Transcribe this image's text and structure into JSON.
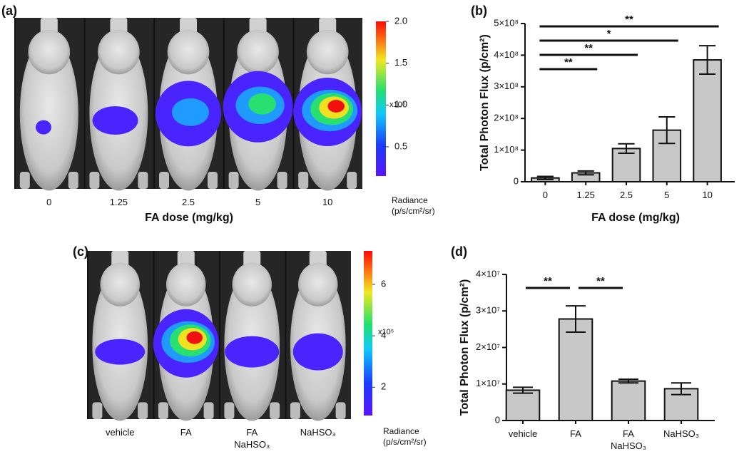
{
  "chart_data": [
    {
      "type": "image",
      "panel_label": "(a)",
      "categories": [
        "0",
        "1.25",
        "2.5",
        "5",
        "10"
      ],
      "x_label": "FA dose (mg/kg)",
      "colorbar": {
        "label": "Radiance\n(p/s/cm²/sr)",
        "multiplier": "x10⁶",
        "lim": [
          0.15,
          2.0
        ],
        "ticks": [
          0.5,
          {
            "value": 1,
            "label": "1.0"
          },
          1.5,
          {
            "value": 2,
            "label": "2.0"
          }
        ]
      }
    },
    {
      "type": "bar",
      "panel_label": "(b)",
      "categories": [
        "0",
        "1.25",
        "2.5",
        "5",
        "10"
      ],
      "values": [
        12000000,
        28000000,
        105000000,
        163000000,
        385000000
      ],
      "errors": [
        5000000,
        6000000,
        15000000,
        42000000,
        45000000
      ],
      "color": "#c8c8c8",
      "x_label": "FA dose (mg/kg)",
      "y_label": "Total Photon Flux (p/cm²)",
      "ylim": [
        0,
        500000000
      ],
      "yticks": [
        0,
        {
          "value": 100000000,
          "label": "1×10⁸"
        },
        {
          "value": 200000000,
          "label": "2×10⁸"
        },
        {
          "value": 300000000,
          "label": "3×10⁸"
        },
        {
          "value": 400000000,
          "label": "4×10⁸"
        },
        {
          "value": 500000000,
          "label": "5×10⁸"
        }
      ],
      "significance": [
        {
          "pair": [
            0,
            4
          ],
          "label": "**"
        },
        {
          "pair": [
            0,
            3
          ],
          "label": "*"
        },
        {
          "pair": [
            0,
            2
          ],
          "label": "**"
        },
        {
          "pair": [
            0,
            1
          ],
          "label": "**"
        }
      ]
    },
    {
      "type": "image",
      "panel_label": "(c)",
      "categories": [
        "vehicle",
        "FA",
        "FA\nNaHSO₃",
        "NaHSO₃"
      ],
      "colorbar": {
        "label": "Radiance\n(p/s/cm²/sr)",
        "multiplier": "x10⁵",
        "lim": [
          0.9,
          7.3
        ],
        "ticks": [
          2,
          4,
          6
        ]
      }
    },
    {
      "type": "bar",
      "panel_label": "(d)",
      "categories": [
        "vehicle",
        "FA",
        "FA\nNaHSO₃",
        "NaHSO₃"
      ],
      "values": [
        8300000,
        27800000,
        10800000,
        8700000
      ],
      "errors": [
        800000,
        3600000,
        500000,
        1600000
      ],
      "color": "#c8c8c8",
      "y_label": "Total Photon Flux (p/cm²)",
      "ylim": [
        0,
        40000000
      ],
      "yticks": [
        0,
        {
          "value": 10000000,
          "label": "1×10⁷"
        },
        {
          "value": 20000000,
          "label": "2×10⁷"
        },
        {
          "value": 30000000,
          "label": "3×10⁷"
        },
        {
          "value": 40000000,
          "label": "4×10⁷"
        }
      ],
      "significance": [
        {
          "pair": [
            0,
            1
          ],
          "label": "**"
        },
        {
          "pair": [
            1,
            2
          ],
          "label": "**"
        }
      ]
    }
  ]
}
